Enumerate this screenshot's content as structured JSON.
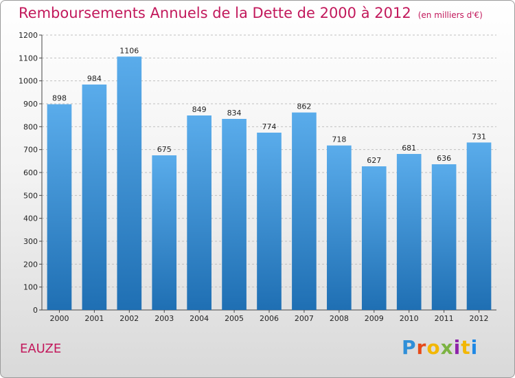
{
  "chart_data": {
    "type": "bar",
    "title": "Remboursements Annuels de la Dette de 2000 à 2012",
    "subtitle": "(en milliers d'€)",
    "categories": [
      "2000",
      "2001",
      "2002",
      "2003",
      "2004",
      "2005",
      "2006",
      "2007",
      "2008",
      "2009",
      "2010",
      "2011",
      "2012"
    ],
    "values": [
      898,
      984,
      1106,
      675,
      849,
      834,
      774,
      862,
      718,
      627,
      681,
      636,
      731
    ],
    "ylim": [
      0,
      1200
    ],
    "yticks": [
      0,
      100,
      200,
      300,
      400,
      500,
      600,
      700,
      800,
      900,
      1000,
      1100,
      1200
    ],
    "grid": true,
    "xlabel": "",
    "ylabel": ""
  },
  "commune": "EAUZE",
  "logo": {
    "text": "Proxiti",
    "colors": [
      "#2f8fd8",
      "#e64a19",
      "#f2b705",
      "#7cb342",
      "#8e24aa",
      "#f2b705",
      "#1e88e5"
    ]
  },
  "colors": {
    "bar_top": "#5aaceb",
    "bar_bottom": "#1f6fb3",
    "title": "#c2185b",
    "grid": "#bfbfbf"
  }
}
